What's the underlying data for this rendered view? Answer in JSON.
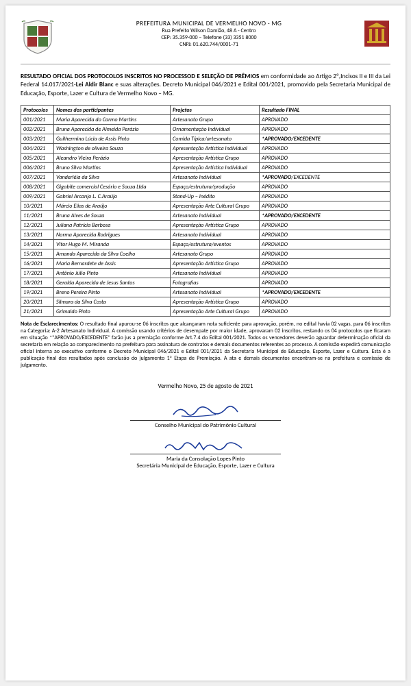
{
  "header": {
    "org": "PREFEITURA MUNICIPAL DE VERMELHO NOVO - MG",
    "address": "Rua Prefeito Wilson Damião, 48 A - Centro",
    "cep_phone": "CEP: 35.359-000 – Telefone (33) 3351 8000",
    "cnpj": "CNPJ: 01.620.744/0001-71"
  },
  "intro": {
    "title": "RESULTADO OFICIAL DOS PROTOCOLOS INSCRITOS NO PROCESSOD E SELEÇÃO DE PRÊMIOS",
    "text1": " em conformidade ao Artigo 2º,Incisos II e III da  Lei Federal 14.017/2021-",
    "law": "Lei Aldir Blanc",
    "text2": " e suas alterações. Decreto Municipal 046/2021 e Edital 001/2021, promovido pela Secretaria Municipal de Educação, Esporte, Lazer e Cultura de Vermelho Novo – MG."
  },
  "table": {
    "headers": [
      "Protocolos",
      "Nomes dos participantes",
      "Projetos",
      "Resultado FINAL"
    ],
    "rows": [
      [
        "001/2021",
        "Maria Aparecida do Carmo Martins",
        "Artesanato Grupo",
        "APROVADO",
        false
      ],
      [
        "002/2021",
        "Bruna Aparecida de Almeida Perázio",
        "Ornamentação Individual",
        "APROVADO",
        false
      ],
      [
        "003/2021",
        "Guilhermina Lúcia de Assis Pinto",
        "Comida Típica/artesanato",
        "*APROVADO/EXCEDENTE",
        true
      ],
      [
        "004/2021",
        "Washington de oliveira Souza",
        "Apresentação Artística Individual",
        "APROVADO",
        false
      ],
      [
        "005/2021",
        "Aleandro Vieira Perázio",
        "Apresentação Artística Grupo",
        "APROVADO",
        false
      ],
      [
        "006/2021",
        "Bruno Silva Martins",
        "Apresentação Artística Individual",
        "APROVADO",
        false
      ],
      [
        "007/2021",
        "Vanderléia da Silva",
        "Artesanato Individual",
        "*APROVADO/EXCEDENTE",
        true
      ],
      [
        "008/2021",
        "Gigabite comercial Cesário e Souza Ltda",
        "Espaço/estrutura/produção",
        "APROVADO",
        false
      ],
      [
        "009/2021",
        "Gabriel Arcanjo L. C.Araújo",
        "Stand-Up – Inédito",
        "APROVADO",
        false
      ],
      [
        "10/2021",
        "Márcio Elias de Araújo",
        "Apresentação Arte Cultural Grupo",
        "APROVADO",
        false
      ],
      [
        "11/2021",
        "Bruna Alves de Souza",
        "Artesanato Individual",
        "*APROVADO/EXCEDENTE",
        true
      ],
      [
        "12/2021",
        "Juliana Patrícia Barbosa",
        "Apresentação Artística Grupo",
        "APROVADO",
        false
      ],
      [
        "13/2021",
        "Norma Aparecida Rodrigues",
        "Artesanato Individual",
        "APROVADO",
        false
      ],
      [
        "14/2021",
        "Vitor Hugo M. Miranda",
        "Espaço/estrutura/eventos",
        "APROVADO",
        false
      ],
      [
        "15/2021",
        "Amanda Aparecida da Silva Coelho",
        "Artesanato Grupo",
        "APROVADO",
        false
      ],
      [
        "16/2021",
        "Maria Bernardete de Assis",
        "Apresentação Artística Grupo",
        "APROVADO",
        false
      ],
      [
        "17/2021",
        "Antônio Júlio Pinto",
        "Artesanato Individual",
        "APROVADO",
        false
      ],
      [
        "18/2021",
        "Geralda Aparecida de Jesus Santos",
        "Fotografias",
        "APROVADO",
        false
      ],
      [
        "19/2021",
        "Breno Pereira Pinto",
        "Artesanato Individual",
        "*APROVADO/EXCEDENTE",
        true
      ],
      [
        "20/2021",
        "Silmara da Silva Costa",
        "Apresentação Artística Grupo",
        "APROVADO",
        false
      ],
      [
        "21/2021",
        "Grimaldo Pinto",
        "Apresentação Arte Cultural Grupo",
        "APROVADO",
        false
      ]
    ]
  },
  "note": {
    "label": "Nota de Esclarecimentos:",
    "text": " O resultado final apurou-se 06 inscritos que alcançaram nota suficiente para aprovação, porém, no edital havia 02 vagas, para 06 inscritos na Categoria: A-2 Artesanato Individual. A comissão usando critérios de desempate por maior idade, aprovaram 02 inscritos, restando os 04 protocolos que ficaram em situação *\"APROVADO/EXCEDENTE\"  farão jus a premiação conforme Art.7.4 do Edital 001/2021. Todos os vencedores deverão aguardar determinação oficial da secretaria em relação ao comparecimento  na prefeitura para assinatura de contratos e demais documentos referentes ao processo. A comissão expedirá comunicação oficial interna ao executivo conforme o Decreto Municipal 046/2021 e Edital 001/2021 da Secretaria Municipal de Educação, Esporte, Lazer e Cultura. Esta é a publicação final dos resultados após conclusão do julgamento 1ª Etapa de Premiação. A ata e demais documentos encontram-se na prefeitura  e comissão de julgamento."
  },
  "footer": {
    "date": "Vermelho Novo, 25 de agosto de 2021",
    "sig1_role": "Conselho Municipal do Patrimônio Cultural",
    "sig2_name": "Maria da Consolação Lopes Pinto",
    "sig2_role": "Secretária Municipal de Educação, Esporte, Lazer e Cultura"
  },
  "colors": {
    "shield_green": "#4a7a3a",
    "shield_red": "#a03030",
    "building_red": "#a02828",
    "building_yellow": "#d4a82c",
    "sig_blue": "#1a3a9a"
  }
}
